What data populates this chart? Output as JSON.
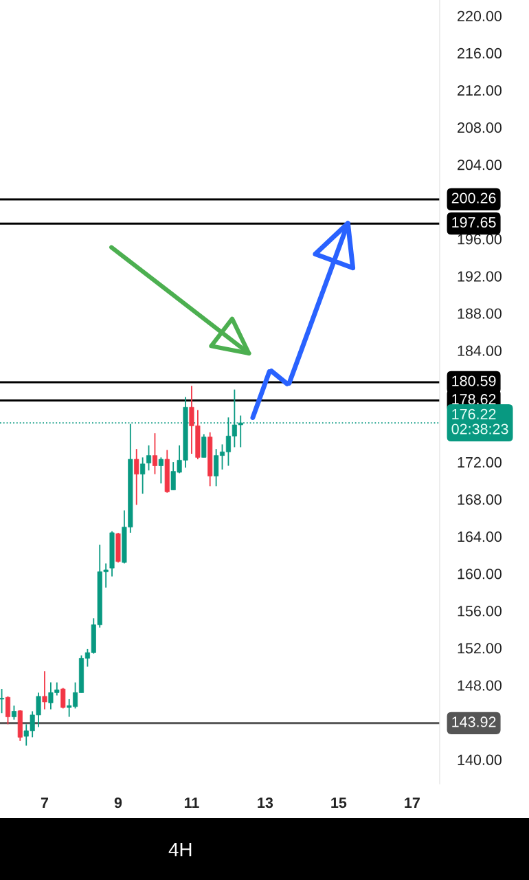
{
  "chart_data": {
    "type": "candlestick",
    "subtitle": "4H",
    "x": [
      5.833,
      6.0,
      6.167,
      6.333,
      6.5,
      6.667,
      6.833,
      7.0,
      7.167,
      7.333,
      7.5,
      7.667,
      7.833,
      8.0,
      8.167,
      8.333,
      8.5,
      8.667,
      8.833,
      9.0,
      9.167,
      9.333,
      9.5,
      9.667,
      9.833,
      10.0,
      10.167,
      10.333,
      10.5,
      10.667,
      10.833,
      11.0,
      11.167,
      11.333,
      11.5,
      11.667,
      11.833,
      12.0,
      12.167,
      12.333
    ],
    "ohlc": [
      [
        146.5,
        147.6,
        145.0,
        146.6
      ],
      [
        146.7,
        146.8,
        143.8,
        144.6
      ],
      [
        144.6,
        145.8,
        144.3,
        145.2
      ],
      [
        145.25,
        145.3,
        142.0,
        142.4
      ],
      [
        142.5,
        143.8,
        141.5,
        143.1
      ],
      [
        143.1,
        145.2,
        142.4,
        144.8
      ],
      [
        144.8,
        147.2,
        143.5,
        146.8
      ],
      [
        146.8,
        149.5,
        145.4,
        146.2
      ],
      [
        146.1,
        148.3,
        145.4,
        147.2
      ],
      [
        147.2,
        148.3,
        146.9,
        147.5
      ],
      [
        147.6,
        147.7,
        145.5,
        145.6
      ],
      [
        145.6,
        146.5,
        144.6,
        145.8
      ],
      [
        145.7,
        148.3,
        145.5,
        147.2
      ],
      [
        147.2,
        151.2,
        147.2,
        150.9
      ],
      [
        150.9,
        151.9,
        150.0,
        151.5
      ],
      [
        151.5,
        155.2,
        151.4,
        154.5
      ],
      [
        154.5,
        163.1,
        154.2,
        160.2
      ],
      [
        160.2,
        161.1,
        158.5,
        160.4
      ],
      [
        160.6,
        164.55,
        159.7,
        164.4
      ],
      [
        164.3,
        164.4,
        161.2,
        161.3
      ],
      [
        161.2,
        166.8,
        161.1,
        165.0
      ],
      [
        165.0,
        176.1,
        164.4,
        172.3
      ],
      [
        172.3,
        173.4,
        167.4,
        170.7
      ],
      [
        170.7,
        172.5,
        168.6,
        171.8
      ],
      [
        171.9,
        173.8,
        171.1,
        172.7
      ],
      [
        172.7,
        175.1,
        170.7,
        171.6
      ],
      [
        171.6,
        172.5,
        169.7,
        172.3
      ],
      [
        172.3,
        173.3,
        168.7,
        168.8
      ],
      [
        169.0,
        172.0,
        169.0,
        171.0
      ],
      [
        170.9,
        173.8,
        170.8,
        172.2
      ],
      [
        172.2,
        179.0,
        171.4,
        177.9
      ],
      [
        177.9,
        180.2,
        172.9,
        175.9
      ],
      [
        175.9,
        177.6,
        172.3,
        172.5
      ],
      [
        172.5,
        175.0,
        172.5,
        174.7
      ],
      [
        174.7,
        175.2,
        169.4,
        170.5
      ],
      [
        170.5,
        173.4,
        169.4,
        172.7
      ],
      [
        172.7,
        173.9,
        171.2,
        173.1
      ],
      [
        173.1,
        176.8,
        171.6,
        174.8
      ],
      [
        174.8,
        179.8,
        173.6,
        176.0
      ],
      [
        176.0,
        177.0,
        173.6,
        176.22
      ]
    ],
    "colors": [
      "#089981",
      "#f23645",
      "#089981",
      "#f23645",
      "#089981",
      "#089981",
      "#089981",
      "#f23645",
      "#089981",
      "#089981",
      "#f23645",
      "#089981",
      "#089981",
      "#089981",
      "#089981",
      "#089981",
      "#089981",
      "#089981",
      "#089981",
      "#f23645",
      "#089981",
      "#089981",
      "#f23645",
      "#089981",
      "#089981",
      "#f23645",
      "#089981",
      "#f23645",
      "#089981",
      "#089981",
      "#089981",
      "#f23645",
      "#f23645",
      "#089981",
      "#f23645",
      "#089981",
      "#089981",
      "#089981",
      "#089981",
      "#089981"
    ],
    "xlim": [
      5.785,
      17.75
    ],
    "xticks": [
      7,
      9,
      11,
      13,
      15,
      17
    ],
    "ylim": [
      137.4,
      221.7
    ],
    "yticks": [
      {
        "value": 140,
        "label": "140.00"
      },
      {
        "value": 148,
        "label": "148.00"
      },
      {
        "value": 152,
        "label": "152.00"
      },
      {
        "value": 156,
        "label": "156.00"
      },
      {
        "value": 160,
        "label": "160.00"
      },
      {
        "value": 164,
        "label": "164.00"
      },
      {
        "value": 168,
        "label": "168.00"
      },
      {
        "value": 172,
        "label": "172.00"
      },
      {
        "value": 184,
        "label": "184.00"
      },
      {
        "value": 188,
        "label": "188.00"
      },
      {
        "value": 192,
        "label": "192.00"
      },
      {
        "value": 196,
        "label": "196.00"
      },
      {
        "value": 204,
        "label": "204.00"
      },
      {
        "value": 208,
        "label": "208.00"
      },
      {
        "value": 212,
        "label": "212.00"
      },
      {
        "value": 216,
        "label": "216.00"
      },
      {
        "value": 220,
        "label": "220.00"
      }
    ],
    "ref_lines": [
      {
        "axis": "y",
        "value": 200.26,
        "label": "200.26",
        "color": "#000000",
        "line_style": "solid"
      },
      {
        "axis": "y",
        "value": 197.65,
        "label": "197.65",
        "color": "#000000",
        "line_style": "solid"
      },
      {
        "axis": "y",
        "value": 180.59,
        "label": "180.59",
        "color": "#000000",
        "line_style": "solid"
      },
      {
        "axis": "y",
        "value": 178.62,
        "label": "178.62",
        "color": "#000000",
        "line_style": "solid"
      },
      {
        "axis": "y",
        "value": 176.22,
        "label": "176.22\n02:38:23",
        "color": "#089981",
        "line_style": "dotted"
      },
      {
        "axis": "y",
        "value": 143.92,
        "label": "143.92",
        "color": "#555555",
        "line_style": "solid"
      }
    ],
    "grid": false,
    "legend": false
  }
}
